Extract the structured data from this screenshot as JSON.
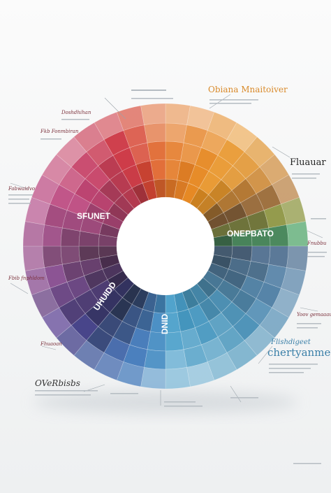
{
  "title": "Obiana Mnaitoiver",
  "callouts": [
    {
      "heading": "Doshdhihan"
    },
    {
      "heading": "Fkb Fonmbiran"
    },
    {
      "heading": "Fabwaidvo"
    },
    {
      "heading": "Fluauar"
    },
    {
      "heading": "Fnubbu"
    },
    {
      "heading": "Fbib fnphldom"
    },
    {
      "heading": "Yoov gemaaaum"
    },
    {
      "heading": "Fhuaoan"
    },
    {
      "heading": "Flishdigeet"
    },
    {
      "heading": "chertyanmen"
    },
    {
      "heading": "OVeRbisbs"
    }
  ],
  "ring_labels": [
    "SFUNET",
    "ONEPBATO",
    "UHUIDD",
    "DNID"
  ]
}
